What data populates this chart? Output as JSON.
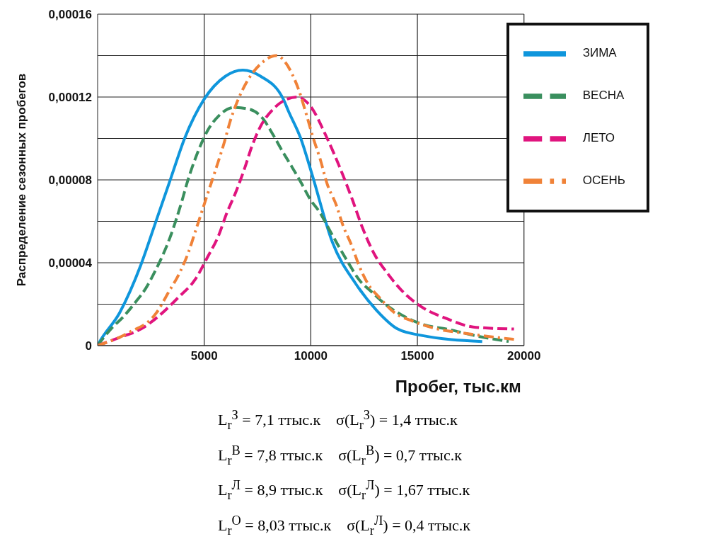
{
  "chart_data": {
    "type": "line",
    "xlabel": "Пробег, тыс.км",
    "ylabel": "Распределение сезонных пробегов",
    "xlim": [
      0,
      20000
    ],
    "xticks": [
      5000,
      10000,
      15000,
      20000
    ],
    "ylim": [
      0,
      0.00016
    ],
    "yticks": [
      {
        "value": 0,
        "label": "0"
      },
      {
        "value": 2e-05,
        "label": null
      },
      {
        "value": 4e-05,
        "label": "0,00004"
      },
      {
        "value": 6e-05,
        "label": null
      },
      {
        "value": 8e-05,
        "label": "0,00008"
      },
      {
        "value": 0.0001,
        "label": null
      },
      {
        "value": 0.00012,
        "label": "0,00012"
      },
      {
        "value": 0.00014,
        "label": null
      },
      {
        "value": 0.00016,
        "label": "0,00016"
      }
    ],
    "grid": true,
    "legend": "top right",
    "marker": "none",
    "series": [
      {
        "name": "ЗИМА",
        "color": "#0f96dc",
        "line_style": "solid",
        "x": [
          0,
          50,
          1040,
          2030,
          2770,
          3440,
          4080,
          5000,
          5990,
          6810,
          7650,
          8710,
          8960,
          9530,
          10020,
          11010,
          12100,
          13090,
          14080,
          15150,
          18040
        ],
        "values": [
          0,
          1e-06,
          1.6e-05,
          3.9e-05,
          6.1e-05,
          8.1e-05,
          0.0001,
          0.000119,
          0.00013,
          0.000133,
          0.00013,
          0.000119,
          0.000113,
          0.0001,
          8.4e-05,
          5e-05,
          3e-05,
          1.7e-05,
          8e-06,
          5e-06,
          2e-06
        ]
      },
      {
        "name": "ВЕСНА",
        "color": "#3a8f5e",
        "line_style": "dashed",
        "x": [
          0,
          620,
          1210,
          1780,
          2280,
          2700,
          3070,
          3390,
          3690,
          3960,
          4210,
          4500,
          4800,
          5170,
          5690,
          6410,
          7150,
          7720,
          8220,
          8660,
          9130,
          9580,
          9950,
          10440,
          10870,
          11360,
          11760,
          12250,
          12850,
          13490,
          14230,
          15320,
          16380,
          17620,
          19280
        ],
        "values": [
          0,
          8e-06,
          1.4e-05,
          2.1e-05,
          2.8e-05,
          3.6e-05,
          4.4e-05,
          5.2e-05,
          6.1e-05,
          7e-05,
          7.9e-05,
          8.8e-05,
          9.6e-05,
          0.000104,
          0.000111,
          0.000115,
          0.000114,
          0.00011,
          0.000102,
          9.4e-05,
          8.6e-05,
          7.8e-05,
          7.1e-05,
          6.4e-05,
          5.6e-05,
          4.7e-05,
          4e-05,
          3.2e-05,
          2.6e-05,
          2e-05,
          1.5e-05,
          1e-05,
          8e-06,
          5e-06,
          2e-06
        ]
      },
      {
        "name": "ЛЕТО",
        "color": "#e0147e",
        "line_style": "dashed",
        "x": [
          0,
          1040,
          2030,
          2950,
          3760,
          4580,
          5170,
          5670,
          6060,
          6480,
          6910,
          7230,
          7650,
          8220,
          8890,
          9380,
          9950,
          10770,
          11360,
          11930,
          12420,
          12990,
          13590,
          14230,
          15150,
          16380,
          17620,
          19530
        ],
        "values": [
          0,
          4e-06,
          8e-06,
          1.5e-05,
          2.3e-05,
          3.2e-05,
          4.3e-05,
          5.3e-05,
          6.4e-05,
          7.4e-05,
          8.6e-05,
          9.6e-05,
          0.000106,
          0.000114,
          0.000119,
          0.00012,
          0.000116,
          0.0001,
          8.6e-05,
          7.1e-05,
          5.7e-05,
          4.4e-05,
          3.5e-05,
          2.7e-05,
          1.9e-05,
          1.3e-05,
          9e-06,
          8e-06
        ]
      },
      {
        "name": "ОСЕНЬ",
        "color": "#f08238",
        "line_style": "dashdot",
        "x": [
          0,
          1410,
          2770,
          3340,
          3840,
          4260,
          4580,
          4930,
          5250,
          5570,
          5910,
          6240,
          6560,
          6980,
          7650,
          8390,
          8790,
          9130,
          9450,
          9780,
          10120,
          10440,
          10770,
          11190,
          11510,
          11930,
          12250,
          12670,
          13240,
          13910,
          14730,
          15960,
          17200,
          19530
        ],
        "values": [
          0,
          6e-06,
          1.6e-05,
          2.6e-05,
          3.5e-05,
          4.5e-05,
          5.5e-05,
          6.6e-05,
          7.6e-05,
          8.6e-05,
          9.7e-05,
          0.000109,
          0.000118,
          0.000127,
          0.000136,
          0.00014,
          0.000137,
          0.000131,
          0.000123,
          0.000112,
          0.0001,
          9e-05,
          7.8e-05,
          6.8e-05,
          5.8e-05,
          4.8e-05,
          3.9e-05,
          3e-05,
          2.3e-05,
          1.6e-05,
          1.2e-05,
          8e-06,
          6e-06,
          3e-06
        ]
      }
    ],
    "annotations": [
      "L$_{r}$$^{З}$ = 7,1 ттыс.к    σ(L$_{r}$$^{З}$) = 1,4 ттыс.к",
      "L$_{r}$$^{В}$ = 7,8 ттыс.к    σ(L$_{r}$$^{В}$) = 0,7 ттыс.к",
      "L$_{r}$$^{Л}$ = 8,9 ттыс.к    σ(L$_{r}$$^{Л}$) = 1,67 ттыс.к",
      "L$_{r}$$^{О}$ = 8,03 ттыс.к    σ(L$_{r}$$^{Л}$) = 0,4 ттыс.к"
    ]
  }
}
